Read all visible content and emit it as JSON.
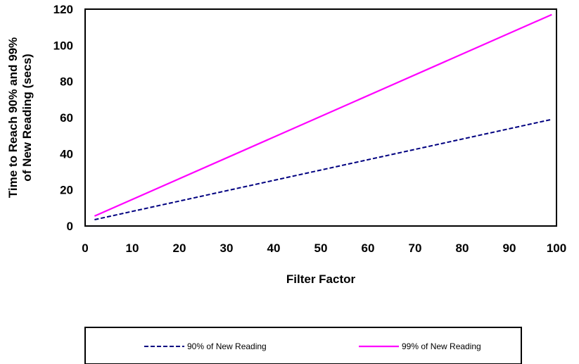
{
  "chart_data": {
    "type": "line",
    "xlabel": "Filter Factor",
    "ylabel_lines": [
      "Time to Reach 90% and 99%",
      "of New Reading (secs)"
    ],
    "xlim": [
      0,
      100
    ],
    "ylim": [
      0,
      120
    ],
    "xticks": [
      "0",
      "10",
      "20",
      "30",
      "40",
      "50",
      "60",
      "70",
      "80",
      "90",
      "100"
    ],
    "yticks": [
      "0",
      "20",
      "40",
      "60",
      "80",
      "100",
      "120"
    ],
    "grid": false,
    "legend_position": "bottom",
    "series": [
      {
        "name": "90% of New Reading",
        "color": "#000080",
        "dash": "dashed",
        "x": [
          2,
          99
        ],
        "y": [
          3.5,
          59
        ]
      },
      {
        "name": "99% of New Reading",
        "color": "#ff00ff",
        "dash": "solid",
        "x": [
          2,
          99
        ],
        "y": [
          5.5,
          117
        ]
      }
    ]
  }
}
